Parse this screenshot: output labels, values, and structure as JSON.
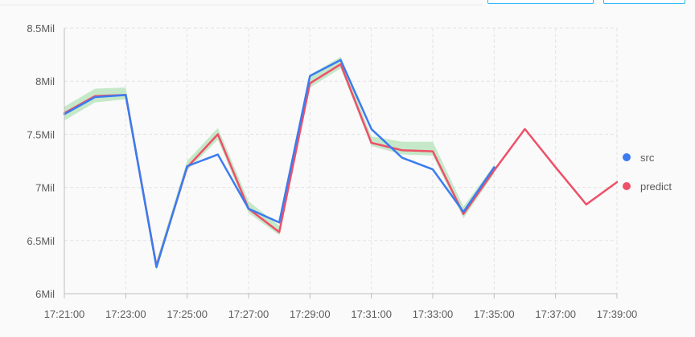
{
  "colors": {
    "src": "#3b7cf0",
    "predict": "#ee5068",
    "band": "#bfe6c3",
    "grid": "#e3e3e3",
    "axis": "#bdbdbd"
  },
  "chart_data": {
    "type": "line",
    "x": [
      "17:21:00",
      "17:22:00",
      "17:23:00",
      "17:24:00",
      "17:25:00",
      "17:26:00",
      "17:27:00",
      "17:28:00",
      "17:29:00",
      "17:30:00",
      "17:31:00",
      "17:32:00",
      "17:33:00",
      "17:34:00",
      "17:35:00",
      "17:36:00",
      "17:37:00",
      "17:38:00",
      "17:39:00"
    ],
    "x_tick_labels": [
      "17:21:00",
      "17:23:00",
      "17:25:00",
      "17:27:00",
      "17:29:00",
      "17:31:00",
      "17:33:00",
      "17:35:00",
      "17:37:00",
      "17:39:00"
    ],
    "y_tick_labels": [
      "6Mil",
      "6.5Mil",
      "7Mil",
      "7.5Mil",
      "8Mil",
      "8.5Mil"
    ],
    "y_ticks": [
      6.0,
      6.5,
      7.0,
      7.5,
      8.0,
      8.5
    ],
    "ylim": [
      6.0,
      8.5
    ],
    "y_unit": "Mil",
    "grid": true,
    "legend_position": "right",
    "series": [
      {
        "name": "src",
        "color_key": "src",
        "values": [
          7.69,
          7.85,
          7.87,
          6.25,
          7.2,
          7.31,
          6.8,
          6.67,
          8.05,
          8.2,
          7.55,
          7.28,
          7.17,
          6.77,
          7.19,
          null,
          null,
          null,
          null
        ]
      },
      {
        "name": "predict",
        "color_key": "predict",
        "values": [
          7.7,
          7.86,
          7.87,
          6.26,
          7.19,
          7.5,
          6.8,
          6.58,
          7.98,
          8.16,
          7.42,
          7.35,
          7.34,
          6.75,
          7.16,
          7.55,
          7.19,
          6.84,
          7.05
        ]
      }
    ],
    "band": {
      "color_key": "band",
      "lower": [
        7.63,
        7.8,
        7.83,
        6.22,
        7.16,
        7.45,
        6.76,
        6.55,
        7.94,
        8.12,
        7.39,
        7.31,
        7.3,
        6.71,
        7.13,
        null,
        null,
        null,
        null
      ],
      "upper": [
        7.76,
        7.93,
        7.94,
        6.31,
        7.25,
        7.56,
        6.87,
        6.64,
        8.06,
        8.23,
        7.48,
        7.43,
        7.43,
        6.82,
        7.21,
        null,
        null,
        null,
        null
      ]
    }
  }
}
